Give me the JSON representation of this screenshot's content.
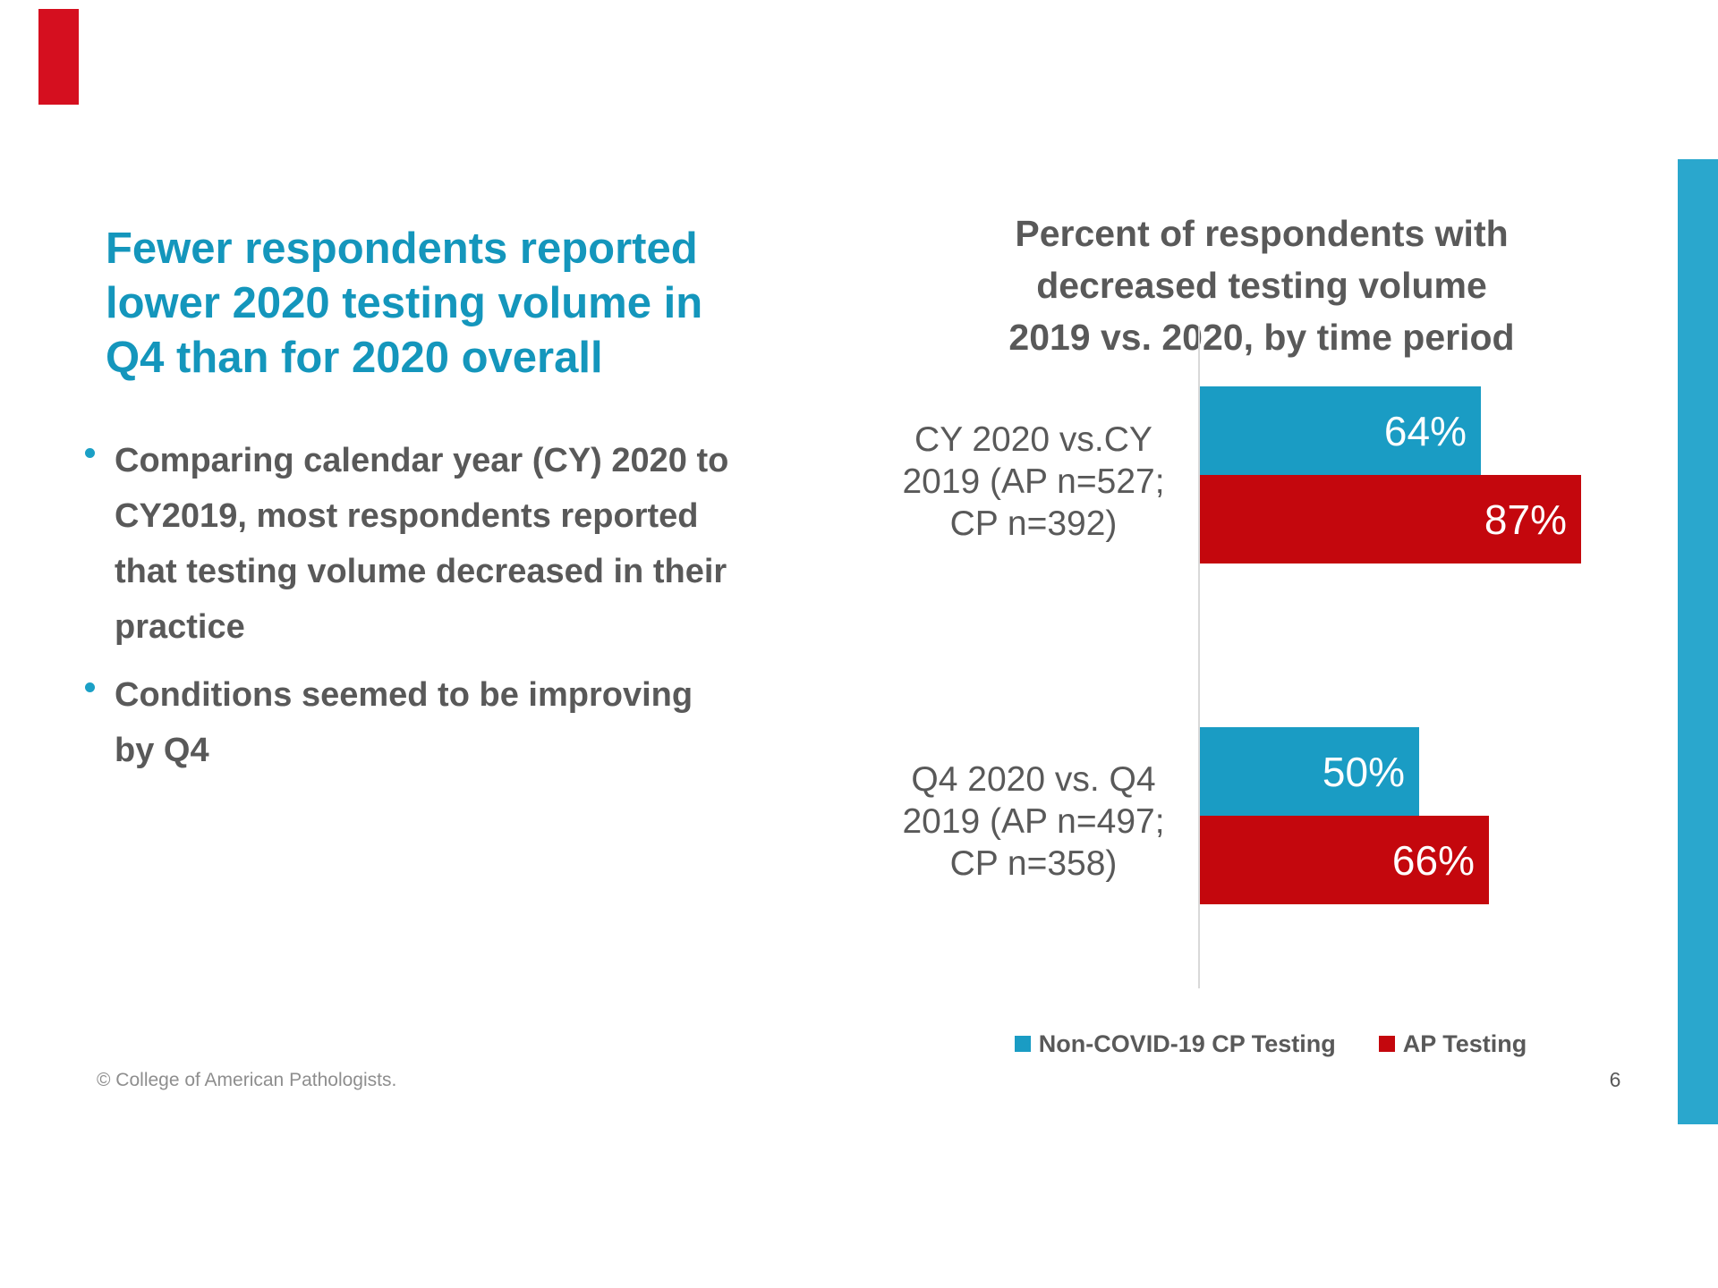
{
  "slide": {
    "background": "#FFFFFF",
    "accent_colors": {
      "title_teal": "#1496BC",
      "strip_teal": "#2AA7CD",
      "corner_red": "#D50F1F",
      "body_gray": "#595959",
      "footer_gray": "#8E8E8E",
      "axis_gray": "#D9D9D9"
    },
    "title_lines": [
      "Fewer respondents reported",
      "lower 2020 testing volume in",
      "Q4 than for 2020 overall"
    ],
    "bullets": [
      {
        "lines": [
          "Comparing calendar year (CY) 2020 to",
          "CY2019, most respondents reported",
          "that testing volume decreased in their",
          "practice"
        ]
      },
      {
        "lines": [
          "Conditions seemed to be improving",
          "by Q4"
        ]
      }
    ],
    "footer": {
      "copyright": "© College of American Pathologists.",
      "page_number": "6"
    }
  },
  "chart_data": {
    "type": "bar",
    "orientation": "horizontal",
    "title": "Percent of respondents with decreased testing volume 2019 vs. 2020, by time period",
    "title_lines": [
      "Percent of respondents with",
      "decreased testing volume",
      "2019 vs. 2020, by time period"
    ],
    "categories": [
      {
        "label": "CY 2020 vs.CY 2019 (AP n=527; CP n=392)",
        "label_lines": [
          "CY 2020 vs.CY",
          "2019 (AP n=527;",
          "CP n=392)"
        ]
      },
      {
        "label": "Q4 2020 vs. Q4 2019 (AP n=497; CP n=358)",
        "label_lines": [
          "Q4 2020 vs. Q4",
          "2019 (AP n=497;",
          "CP n=358)"
        ]
      }
    ],
    "series": [
      {
        "name": "Non-COVID-19 CP Testing",
        "color": "#1A9CC4",
        "values": [
          64,
          50
        ],
        "value_labels": [
          "64%",
          "50%"
        ]
      },
      {
        "name": "AP Testing",
        "color": "#C4070D",
        "values": [
          87,
          66
        ],
        "value_labels": [
          "87%",
          "66%"
        ]
      }
    ],
    "xlim": [
      0,
      100
    ],
    "grid": false,
    "legend_position": "bottom"
  }
}
